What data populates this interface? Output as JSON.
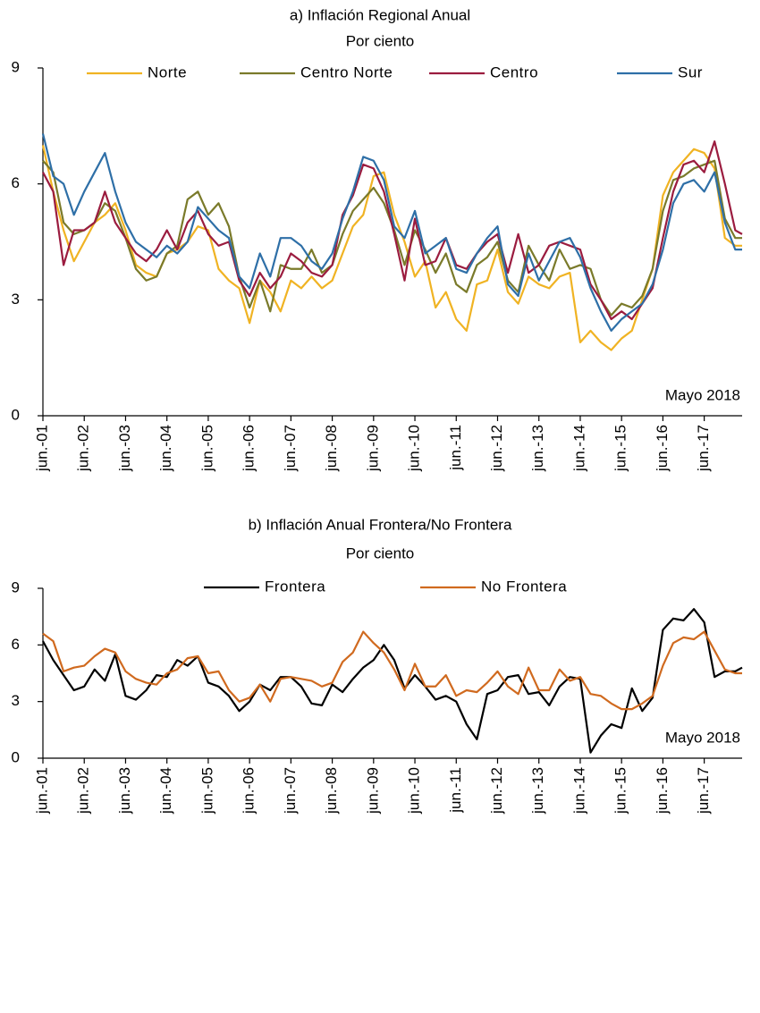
{
  "chart_data": [
    {
      "type": "line",
      "title": "a) Inflación Regional Anual",
      "subtitle": "Por ciento",
      "annotation": "Mayo 2018",
      "x": [
        0,
        3,
        6,
        9,
        12,
        15,
        18,
        21,
        24,
        27,
        30,
        33,
        36,
        39,
        42,
        45,
        48,
        51,
        54,
        57,
        60,
        63,
        66,
        69,
        72,
        75,
        78,
        81,
        84,
        87,
        90,
        93,
        96,
        99,
        102,
        105,
        108,
        111,
        114,
        117,
        120,
        123,
        126,
        129,
        132,
        135,
        138,
        141,
        144,
        147,
        150,
        153,
        156,
        159,
        162,
        165,
        168,
        171,
        174,
        177,
        180,
        183,
        186,
        189,
        192,
        195,
        198,
        201,
        203
      ],
      "xlim": [
        0,
        203
      ],
      "xticks": [
        {
          "value": 0,
          "label": "jun.-01"
        },
        {
          "value": 12,
          "label": "jun.-02"
        },
        {
          "value": 24,
          "label": "jun.-03"
        },
        {
          "value": 36,
          "label": "jun.-04"
        },
        {
          "value": 48,
          "label": "jun.-05"
        },
        {
          "value": 60,
          "label": "jun.-06"
        },
        {
          "value": 72,
          "label": "jun.-07"
        },
        {
          "value": 84,
          "label": "jun.-08"
        },
        {
          "value": 96,
          "label": "jun.-09"
        },
        {
          "value": 108,
          "label": "jun.-10"
        },
        {
          "value": 120,
          "label": "jun.-11"
        },
        {
          "value": 132,
          "label": "jun.-12"
        },
        {
          "value": 144,
          "label": "jun.-13"
        },
        {
          "value": 156,
          "label": "jun.-14"
        },
        {
          "value": 168,
          "label": "jun.-15"
        },
        {
          "value": 180,
          "label": "jun.-16"
        },
        {
          "value": 192,
          "label": "jun.-17"
        }
      ],
      "ylim": [
        0,
        9
      ],
      "yticks": [
        0,
        3,
        6,
        9
      ],
      "series": [
        {
          "name": "Norte",
          "color": "#f0b323",
          "values": [
            7.0,
            5.8,
            4.8,
            4.0,
            4.5,
            5.0,
            5.2,
            5.5,
            4.8,
            3.9,
            3.7,
            3.6,
            4.2,
            4.3,
            4.5,
            4.9,
            4.8,
            3.8,
            3.5,
            3.3,
            2.4,
            3.5,
            3.2,
            2.7,
            3.5,
            3.3,
            3.6,
            3.3,
            3.5,
            4.2,
            4.9,
            5.2,
            6.2,
            6.3,
            5.2,
            4.5,
            3.6,
            4.0,
            2.8,
            3.2,
            2.5,
            2.2,
            3.4,
            3.5,
            4.3,
            3.2,
            2.9,
            3.6,
            3.4,
            3.3,
            3.6,
            3.7,
            1.9,
            2.2,
            1.9,
            1.7,
            2.0,
            2.2,
            3.0,
            3.8,
            5.7,
            6.3,
            6.6,
            6.9,
            6.8,
            6.4,
            4.6,
            4.4,
            4.4
          ]
        },
        {
          "name": "Centro Norte",
          "color": "#7a7a2a",
          "values": [
            6.6,
            6.3,
            5.0,
            4.7,
            4.8,
            5.0,
            5.5,
            5.3,
            4.6,
            3.8,
            3.5,
            3.6,
            4.2,
            4.4,
            5.6,
            5.8,
            5.2,
            5.5,
            4.9,
            3.6,
            2.8,
            3.5,
            2.7,
            3.9,
            3.8,
            3.8,
            4.3,
            3.7,
            3.9,
            4.7,
            5.3,
            5.6,
            5.9,
            5.5,
            4.8,
            3.9,
            4.8,
            4.3,
            3.7,
            4.2,
            3.4,
            3.2,
            3.9,
            4.1,
            4.5,
            3.5,
            3.2,
            4.4,
            3.9,
            3.5,
            4.3,
            3.8,
            3.9,
            3.8,
            3.0,
            2.6,
            2.9,
            2.8,
            3.1,
            3.8,
            5.3,
            6.1,
            6.2,
            6.4,
            6.5,
            6.6,
            5.1,
            4.6,
            4.6
          ]
        },
        {
          "name": "Centro",
          "color": "#9b1c3f",
          "values": [
            6.3,
            5.8,
            3.9,
            4.8,
            4.8,
            5.0,
            5.8,
            5.0,
            4.6,
            4.2,
            4.0,
            4.3,
            4.8,
            4.3,
            5.0,
            5.3,
            4.7,
            4.4,
            4.5,
            3.5,
            3.1,
            3.7,
            3.3,
            3.6,
            4.2,
            4.0,
            3.7,
            3.6,
            3.9,
            5.2,
            5.7,
            6.5,
            6.4,
            5.8,
            4.7,
            3.5,
            5.1,
            3.9,
            4.0,
            4.6,
            3.9,
            3.8,
            4.2,
            4.5,
            4.7,
            3.7,
            4.7,
            3.7,
            3.9,
            4.4,
            4.5,
            4.4,
            4.3,
            3.4,
            3.0,
            2.5,
            2.7,
            2.5,
            2.9,
            3.3,
            4.6,
            5.8,
            6.5,
            6.6,
            6.3,
            7.1,
            6.0,
            4.8,
            4.7
          ]
        },
        {
          "name": "Sur",
          "color": "#2e6fa7",
          "values": [
            7.3,
            6.2,
            6.0,
            5.2,
            5.8,
            6.3,
            6.8,
            5.8,
            5.0,
            4.5,
            4.3,
            4.1,
            4.4,
            4.2,
            4.5,
            5.4,
            5.1,
            4.8,
            4.6,
            3.6,
            3.3,
            4.2,
            3.6,
            4.6,
            4.6,
            4.4,
            4.0,
            3.8,
            4.2,
            5.1,
            5.8,
            6.7,
            6.6,
            6.1,
            4.9,
            4.6,
            5.3,
            4.2,
            4.4,
            4.6,
            3.8,
            3.7,
            4.2,
            4.6,
            4.9,
            3.4,
            3.1,
            4.2,
            3.5,
            4.0,
            4.5,
            4.6,
            4.1,
            3.3,
            2.7,
            2.2,
            2.5,
            2.7,
            2.9,
            3.4,
            4.3,
            5.5,
            6.0,
            6.1,
            5.8,
            6.3,
            5.0,
            4.3,
            4.3
          ]
        }
      ]
    },
    {
      "type": "line",
      "title": "b) Inflación Anual Frontera/No Frontera",
      "subtitle": "Por ciento",
      "annotation": "Mayo 2018",
      "x": [
        0,
        3,
        6,
        9,
        12,
        15,
        18,
        21,
        24,
        27,
        30,
        33,
        36,
        39,
        42,
        45,
        48,
        51,
        54,
        57,
        60,
        63,
        66,
        69,
        72,
        75,
        78,
        81,
        84,
        87,
        90,
        93,
        96,
        99,
        102,
        105,
        108,
        111,
        114,
        117,
        120,
        123,
        126,
        129,
        132,
        135,
        138,
        141,
        144,
        147,
        150,
        153,
        156,
        159,
        162,
        165,
        168,
        171,
        174,
        177,
        180,
        183,
        186,
        189,
        192,
        195,
        198,
        201,
        203
      ],
      "xlim": [
        0,
        203
      ],
      "xticks": [
        {
          "value": 0,
          "label": "jun.-01"
        },
        {
          "value": 12,
          "label": "jun.-02"
        },
        {
          "value": 24,
          "label": "jun.-03"
        },
        {
          "value": 36,
          "label": "jun.-04"
        },
        {
          "value": 48,
          "label": "jun.-05"
        },
        {
          "value": 60,
          "label": "jun.-06"
        },
        {
          "value": 72,
          "label": "jun.-07"
        },
        {
          "value": 84,
          "label": "jun.-08"
        },
        {
          "value": 96,
          "label": "jun.-09"
        },
        {
          "value": 108,
          "label": "jun.-10"
        },
        {
          "value": 120,
          "label": "jun.-11"
        },
        {
          "value": 132,
          "label": "jun.-12"
        },
        {
          "value": 144,
          "label": "jun.-13"
        },
        {
          "value": 156,
          "label": "jun.-14"
        },
        {
          "value": 168,
          "label": "jun.-15"
        },
        {
          "value": 180,
          "label": "jun.-16"
        },
        {
          "value": 192,
          "label": "jun.-17"
        }
      ],
      "ylim": [
        0,
        9
      ],
      "yticks": [
        0,
        3,
        6,
        9
      ],
      "series": [
        {
          "name": "Frontera",
          "color": "#000000",
          "values": [
            6.2,
            5.2,
            4.4,
            3.6,
            3.8,
            4.7,
            4.1,
            5.5,
            3.3,
            3.1,
            3.6,
            4.4,
            4.3,
            5.2,
            4.9,
            5.4,
            4.0,
            3.8,
            3.3,
            2.5,
            3.0,
            3.9,
            3.6,
            4.3,
            4.3,
            3.8,
            2.9,
            2.8,
            3.9,
            3.5,
            4.2,
            4.8,
            5.2,
            6.0,
            5.2,
            3.7,
            4.4,
            3.8,
            3.1,
            3.3,
            3.0,
            1.8,
            1.0,
            3.4,
            3.6,
            4.3,
            4.4,
            3.4,
            3.5,
            2.8,
            3.8,
            4.3,
            4.2,
            0.3,
            1.2,
            1.8,
            1.6,
            3.7,
            2.5,
            3.2,
            6.8,
            7.4,
            7.3,
            7.9,
            7.2,
            4.3,
            4.6,
            4.6,
            4.8
          ]
        },
        {
          "name": "No Frontera",
          "color": "#d06a1f",
          "values": [
            6.6,
            6.2,
            4.6,
            4.8,
            4.9,
            5.4,
            5.8,
            5.6,
            4.6,
            4.2,
            4.0,
            3.9,
            4.5,
            4.7,
            5.3,
            5.4,
            4.5,
            4.6,
            3.6,
            3.0,
            3.2,
            3.9,
            3.0,
            4.2,
            4.3,
            4.2,
            4.1,
            3.8,
            4.0,
            5.1,
            5.6,
            6.7,
            6.1,
            5.6,
            4.7,
            3.6,
            5.0,
            3.8,
            3.8,
            4.4,
            3.3,
            3.6,
            3.5,
            4.0,
            4.6,
            3.8,
            3.4,
            4.8,
            3.6,
            3.6,
            4.7,
            4.1,
            4.3,
            3.4,
            3.3,
            2.9,
            2.6,
            2.6,
            2.9,
            3.3,
            4.9,
            6.1,
            6.4,
            6.3,
            6.7,
            5.7,
            4.7,
            4.5,
            4.5
          ]
        }
      ]
    }
  ]
}
